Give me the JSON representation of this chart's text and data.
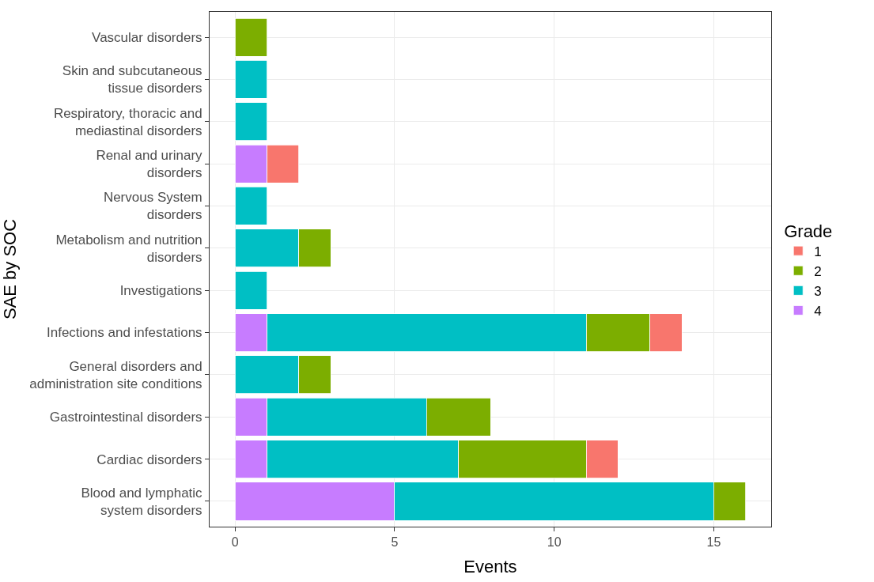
{
  "chart_data": {
    "type": "bar",
    "orientation": "horizontal",
    "stacked": true,
    "xlabel": "Events",
    "ylabel": "SAE by SOC",
    "legend_title": "Grade",
    "legend": "right",
    "categories": [
      "Vascular disorders",
      "Skin and subcutaneous\ntissue disorders",
      "Respiratory, thoracic and\nmediastinal disorders",
      "Renal and urinary\ndisorders",
      "Nervous System\ndisorders",
      "Metabolism and nutrition\ndisorders",
      "Investigations",
      "Infections and infestations",
      "General disorders and\nadministration site conditions",
      "Gastrointestinal disorders",
      "Cardiac disorders",
      "Blood and lymphatic\nsystem disorders"
    ],
    "series": [
      {
        "name": "4",
        "color": "#c77cff",
        "values": [
          null,
          null,
          null,
          1,
          null,
          null,
          null,
          1,
          null,
          1,
          1,
          5
        ]
      },
      {
        "name": "3",
        "color": "#00bfc4",
        "values": [
          null,
          1,
          1,
          null,
          1,
          2,
          1,
          10,
          2,
          5,
          6,
          10
        ]
      },
      {
        "name": "2",
        "color": "#7cae00",
        "values": [
          1,
          null,
          null,
          null,
          null,
          1,
          null,
          2,
          1,
          2,
          4,
          1
        ]
      },
      {
        "name": "1",
        "color": "#f8766d",
        "values": [
          null,
          null,
          null,
          1,
          null,
          null,
          null,
          1,
          null,
          null,
          1,
          null
        ]
      }
    ],
    "xlim": [
      -0.8,
      16.8
    ],
    "xticks": [
      0,
      5,
      10,
      15
    ],
    "grid": true
  }
}
